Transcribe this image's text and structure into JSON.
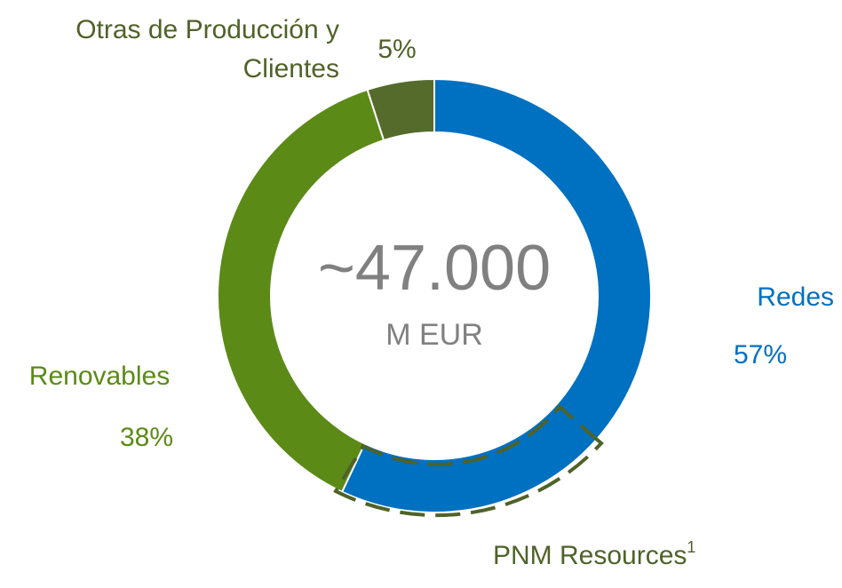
{
  "chart_data": {
    "type": "donut",
    "categories": [
      "Redes",
      "Renovables",
      "Otras de Producción y Clientes"
    ],
    "values": [
      57,
      38,
      5
    ],
    "value_labels": [
      "57%",
      "38%",
      "5%"
    ],
    "colors": [
      "#0070c0",
      "#5b8a17",
      "#556b2b"
    ],
    "label_colors": [
      "#0070c0",
      "#5b8a17",
      "#4f6228"
    ],
    "center_text": "~47.000",
    "center_subtext": "M EUR",
    "annotation": {
      "text": "PNM Resources",
      "superscript": "1"
    }
  }
}
